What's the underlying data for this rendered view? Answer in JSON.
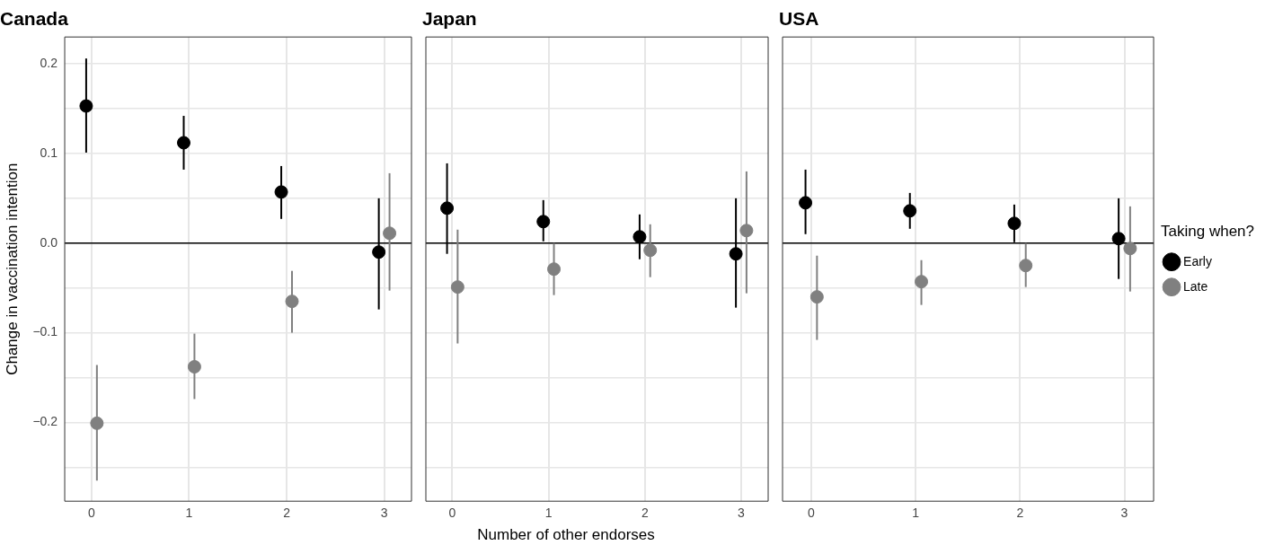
{
  "chart_data": [
    {
      "type": "scatter",
      "title": "Canada",
      "ylabel": "Change in vaccination intention",
      "marker": "circle",
      "grid": true,
      "legend": false,
      "xlim": [
        -0.275,
        3.28
      ],
      "xticks": [
        0,
        1,
        2,
        3
      ],
      "ylim": [
        -0.288,
        0.23
      ],
      "yticks": [
        {
          "value": -0.25,
          "label": null
        },
        {
          "value": -0.2,
          "label": "−0.2"
        },
        {
          "value": -0.15,
          "label": null
        },
        {
          "value": -0.1,
          "label": "−0.1"
        },
        {
          "value": -0.05,
          "label": null
        },
        {
          "value": 0,
          "label": "0.0"
        },
        {
          "value": 0.05,
          "label": null
        },
        {
          "value": 0.1,
          "label": "0.1"
        },
        {
          "value": 0.15,
          "label": null
        },
        {
          "value": 0.2,
          "label": "0.2"
        }
      ],
      "ref_lines": [
        {
          "axis": "y",
          "value": 0,
          "color": "#000000"
        }
      ],
      "series": [
        {
          "color": "#000000",
          "x": [
            -0.055,
            0.945,
            1.945,
            2.945
          ],
          "values": [
            0.153,
            0.112,
            0.057,
            -0.01
          ],
          "errors": [
            [
              0.101,
              0.206
            ],
            [
              0.082,
              0.142
            ],
            [
              0.027,
              0.086
            ],
            [
              -0.074,
              0.05
            ]
          ]
        },
        {
          "color": "#808080",
          "x": [
            0.055,
            1.055,
            2.055,
            3.055
          ],
          "values": [
            -0.201,
            -0.138,
            -0.065,
            0.011
          ],
          "errors": [
            [
              -0.265,
              -0.136
            ],
            [
              -0.174,
              -0.101
            ],
            [
              -0.1,
              -0.031
            ],
            [
              -0.053,
              0.078
            ]
          ]
        }
      ]
    },
    {
      "type": "scatter",
      "title": "Japan",
      "xlabel": "Number of other endorses",
      "marker": "circle",
      "grid": true,
      "legend": false,
      "tick_labels": "x",
      "xlim": [
        -0.275,
        3.28
      ],
      "xticks": [
        0,
        1,
        2,
        3
      ],
      "ylim": [
        -0.288,
        0.23
      ],
      "yticks": [
        -0.25,
        -0.2,
        -0.15,
        -0.1,
        -0.05,
        0,
        0.05,
        0.1,
        0.15,
        0.2
      ],
      "ref_lines": [
        {
          "axis": "y",
          "value": 0,
          "color": "#000000"
        }
      ],
      "series": [
        {
          "color": "#000000",
          "x": [
            -0.055,
            0.945,
            1.945,
            2.945
          ],
          "values": [
            0.039,
            0.024,
            0.007,
            -0.012
          ],
          "errors": [
            [
              -0.012,
              0.089
            ],
            [
              0.002,
              0.048
            ],
            [
              -0.018,
              0.032
            ],
            [
              -0.072,
              0.05
            ]
          ]
        },
        {
          "color": "#808080",
          "x": [
            0.055,
            1.055,
            2.055,
            3.055
          ],
          "values": [
            -0.049,
            -0.029,
            -0.008,
            0.014
          ],
          "errors": [
            [
              -0.112,
              0.015
            ],
            [
              -0.058,
              0.0
            ],
            [
              -0.038,
              0.021
            ],
            [
              -0.056,
              0.08
            ]
          ]
        }
      ]
    },
    {
      "type": "scatter",
      "title": "USA",
      "legend_title": "Taking when?",
      "marker": "circle",
      "grid": true,
      "legend": "right",
      "tick_labels": "x",
      "xlim": [
        -0.275,
        3.28
      ],
      "xticks": [
        0,
        1,
        2,
        3
      ],
      "ylim": [
        -0.288,
        0.23
      ],
      "yticks": [
        -0.25,
        -0.2,
        -0.15,
        -0.1,
        -0.05,
        0,
        0.05,
        0.1,
        0.15,
        0.2
      ],
      "ref_lines": [
        {
          "axis": "y",
          "value": 0,
          "color": "#000000"
        }
      ],
      "series": [
        {
          "name": "Early",
          "color": "#000000",
          "x": [
            -0.055,
            0.945,
            1.945,
            2.945
          ],
          "values": [
            0.045,
            0.036,
            0.022,
            0.005
          ],
          "errors": [
            [
              0.01,
              0.082
            ],
            [
              0.016,
              0.056
            ],
            [
              0.001,
              0.043
            ],
            [
              -0.04,
              0.05
            ]
          ]
        },
        {
          "name": "Late",
          "color": "#808080",
          "x": [
            0.055,
            1.055,
            2.055,
            3.055
          ],
          "values": [
            -0.06,
            -0.043,
            -0.025,
            -0.006
          ],
          "errors": [
            [
              -0.108,
              -0.014
            ],
            [
              -0.069,
              -0.019
            ],
            [
              -0.049,
              0.0
            ],
            [
              -0.054,
              0.041
            ]
          ]
        }
      ]
    }
  ]
}
